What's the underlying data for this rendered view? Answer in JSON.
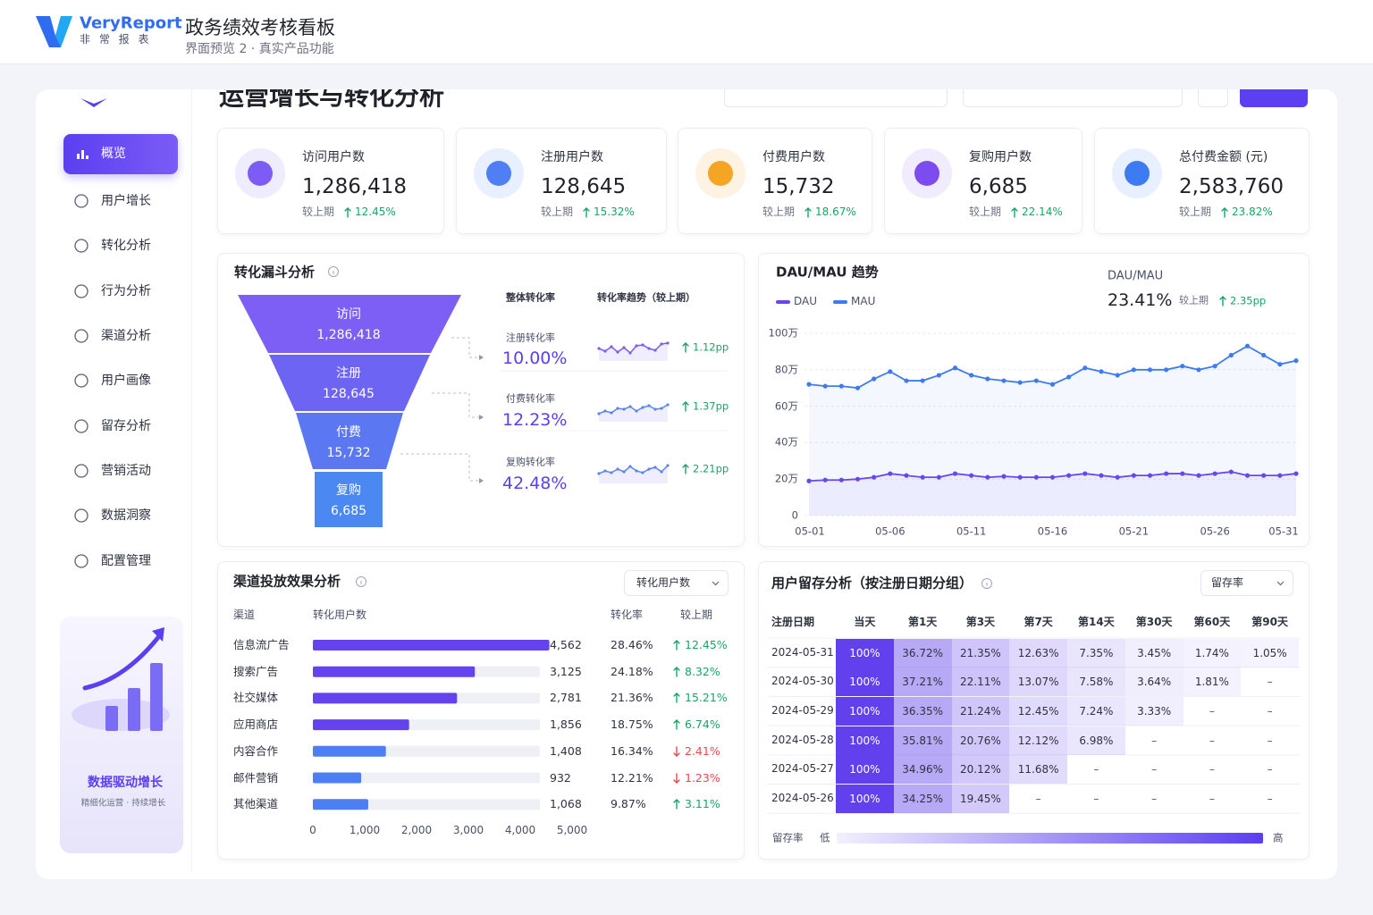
{
  "header": {
    "brand": "VeryReport",
    "brand_sub": "非 常 报 表",
    "title": "政务绩效考核看板",
    "subtitle": "界面预览 2 · 真实产品功能"
  },
  "page_title": "运营增长与转化分析",
  "sidebar": {
    "menu": [
      "概览",
      "用户增长",
      "转化分析",
      "行为分析",
      "渠道分析",
      "用户画像",
      "留存分析",
      "营销活动",
      "数据洞察",
      "配置管理"
    ],
    "active": 0,
    "promo_title": "数据驱动增长",
    "promo_subtitle": "精细化运营 · 持续增长"
  },
  "kpis": [
    {
      "label": "访问用户数",
      "value": "1,286,418",
      "compare": "较上期",
      "change": "12.45%",
      "trend": "up"
    },
    {
      "label": "注册用户数",
      "value": "128,645",
      "compare": "较上期",
      "change": "15.32%",
      "trend": "up"
    },
    {
      "label": "付费用户数",
      "value": "15,732",
      "compare": "较上期",
      "change": "18.67%",
      "trend": "up"
    },
    {
      "label": "复购用户数",
      "value": "6,685",
      "compare": "较上期",
      "change": "22.14%",
      "trend": "up"
    },
    {
      "label": "总付费金额 (元)",
      "value": "2,583,760",
      "compare": "较上期",
      "change": "23.82%",
      "trend": "up"
    }
  ],
  "funnel": {
    "title": "转化漏斗分析",
    "col_rate": "整体转化率",
    "col_trend": "转化率趋势（较上期）",
    "stages": [
      {
        "name": "访问",
        "value": "1,286,418"
      },
      {
        "name": "注册",
        "value": "128,645"
      },
      {
        "name": "付费",
        "value": "15,732"
      },
      {
        "name": "复购",
        "value": "6,685"
      }
    ],
    "rates": [
      {
        "label": "注册转化率",
        "value": "10.00%",
        "change": "1.12pp",
        "trend": "up"
      },
      {
        "label": "付费转化率",
        "value": "12.23%",
        "change": "1.37pp",
        "trend": "up"
      },
      {
        "label": "复购转化率",
        "value": "42.48%",
        "change": "2.21pp",
        "trend": "up"
      }
    ]
  },
  "dau_mau": {
    "type": "line",
    "title": "DAU/MAU 趋势",
    "kpi_label": "DAU/MAU",
    "kpi_value": "23.41%",
    "compare": "较上期",
    "kpi_change": "2.35pp",
    "kpi_trend": "up",
    "x": [
      "05-01",
      null,
      null,
      null,
      null,
      "05-06",
      null,
      null,
      null,
      null,
      "05-11",
      null,
      null,
      null,
      null,
      "05-16",
      null,
      null,
      null,
      null,
      "05-21",
      null,
      null,
      null,
      null,
      "05-26",
      null,
      null,
      null,
      null,
      "05-31"
    ],
    "series": [
      {
        "name": "DAU",
        "color": "#6a45ee",
        "values": [
          19,
          19.5,
          19.5,
          20,
          21,
          23,
          22,
          21,
          21,
          23,
          22,
          21,
          21.5,
          21,
          21,
          21,
          22,
          23,
          22,
          21,
          22,
          22,
          23,
          23,
          22,
          23,
          24,
          22,
          22,
          22,
          23
        ]
      },
      {
        "name": "MAU",
        "color": "#3d7bf2",
        "values": [
          72,
          71,
          71,
          70,
          75,
          79,
          74,
          74,
          77,
          81,
          77,
          75,
          74,
          73,
          74,
          72,
          76,
          81,
          79,
          77,
          80,
          80,
          80,
          82,
          80,
          82,
          88,
          93,
          88,
          83,
          85
        ]
      }
    ],
    "ylim": [
      0,
      100
    ],
    "yticks": [
      0,
      {
        "value": 20,
        "label": "20万"
      },
      {
        "value": 40,
        "label": "40万"
      },
      {
        "value": 60,
        "label": "60万"
      },
      {
        "value": 80,
        "label": "80万"
      },
      {
        "value": 100,
        "label": "100万"
      }
    ],
    "grid": true
  },
  "channels": {
    "type": "bar",
    "orientation": "horizontal",
    "title": "渠道投放效果分析",
    "dropdown": "转化用户数",
    "columns": [
      "渠道",
      "转化用户数",
      "转化率",
      "较上期"
    ],
    "categories": [
      "信息流广告",
      "搜索广告",
      "社交媒体",
      "应用商店",
      "内容合作",
      "邮件营销",
      "其他渠道"
    ],
    "values": [
      4562,
      3125,
      2781,
      1856,
      1408,
      932,
      1068
    ],
    "value_labels": [
      "4,562",
      "3,125",
      "2,781",
      "1,856",
      "1,408",
      "932",
      "1,068"
    ],
    "rates": [
      "28.46%",
      "24.18%",
      "21.36%",
      "18.75%",
      "16.34%",
      "12.21%",
      "9.87%"
    ],
    "changes": [
      "12.45%",
      "8.32%",
      "15.21%",
      "6.74%",
      "2.41%",
      "1.23%",
      "3.11%"
    ],
    "trends": [
      "up",
      "up",
      "up",
      "up",
      "down",
      "down",
      "up"
    ],
    "colors": [
      "#6442ee",
      "#6442ee",
      "#6442ee",
      "#6442ee",
      "#4d7ef4",
      "#4d7ef4",
      "#4d7ef4"
    ],
    "xlim": [
      0,
      5000
    ],
    "xticks": [
      0,
      {
        "value": 1000,
        "label": "1,000"
      },
      {
        "value": 2000,
        "label": "2,000"
      },
      {
        "value": 3000,
        "label": "3,000"
      },
      {
        "value": 4000,
        "label": "4,000"
      },
      {
        "value": 5000,
        "label": "5,000"
      }
    ]
  },
  "retention": {
    "title": "用户留存分析（按注册日期分组）",
    "dropdown": "留存率",
    "columns": [
      "注册日期",
      "当天",
      "第1天",
      "第3天",
      "第7天",
      "第14天",
      "第30天",
      "第60天",
      "第90天"
    ],
    "rows": [
      [
        "2024-05-31",
        "100%",
        "36.72%",
        "21.35%",
        "12.63%",
        "7.35%",
        "3.45%",
        "1.74%",
        "1.05%"
      ],
      [
        "2024-05-30",
        "100%",
        "37.21%",
        "22.11%",
        "13.07%",
        "7.58%",
        "3.64%",
        "1.81%",
        "–"
      ],
      [
        "2024-05-29",
        "100%",
        "36.35%",
        "21.24%",
        "12.45%",
        "7.24%",
        "3.33%",
        "–",
        "–"
      ],
      [
        "2024-05-28",
        "100%",
        "35.81%",
        "20.76%",
        "12.12%",
        "6.98%",
        "–",
        "–",
        "–"
      ],
      [
        "2024-05-27",
        "100%",
        "34.96%",
        "20.12%",
        "11.68%",
        "–",
        "–",
        "–",
        "–"
      ],
      [
        "2024-05-26",
        "100%",
        "34.25%",
        "19.45%",
        "–",
        "–",
        "–",
        "–",
        "–"
      ]
    ],
    "legend_label": "留存率",
    "legend_low": "低",
    "legend_high": "高"
  }
}
